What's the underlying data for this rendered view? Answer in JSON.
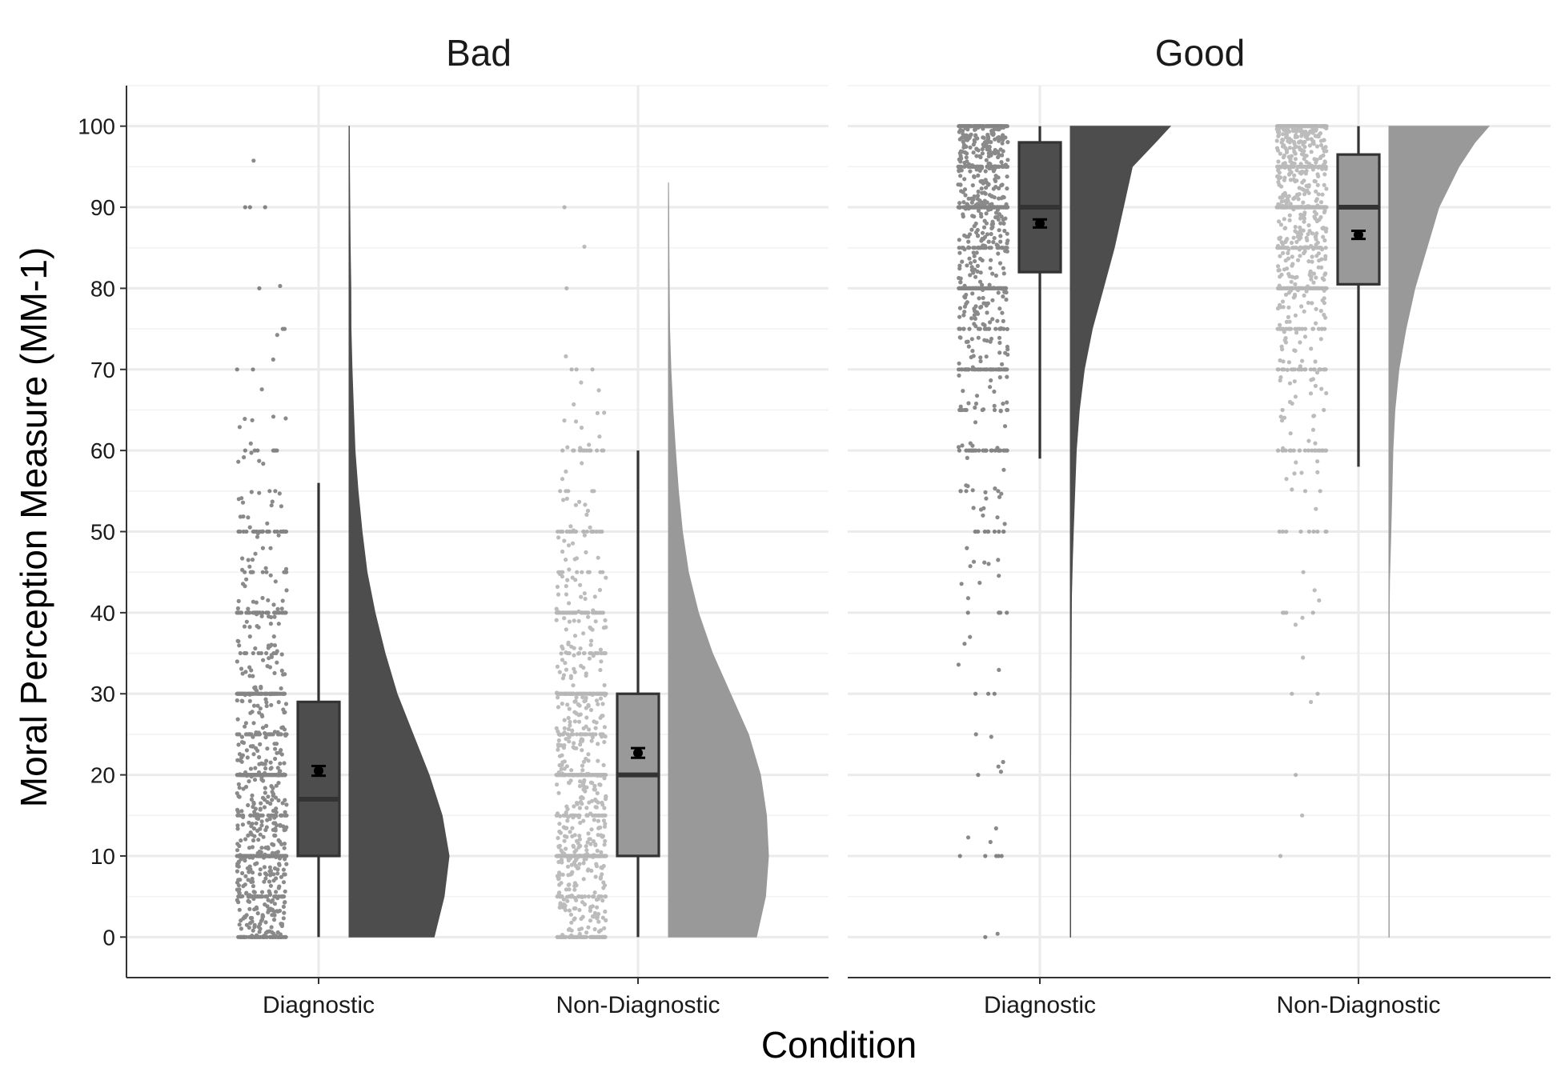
{
  "chart_data": {
    "type": "raincloud",
    "xlabel": "Condition",
    "ylabel": "Moral Perception Measure (MM-1)",
    "ylim": [
      -5,
      105
    ],
    "yticks": [
      0,
      10,
      20,
      30,
      40,
      50,
      60,
      70,
      80,
      90,
      100
    ],
    "grid": true,
    "categories": [
      "Diagnostic",
      "Non-Diagnostic"
    ],
    "colors": {
      "Diagnostic": "#4d4d4d",
      "Non-Diagnostic": "#999999"
    },
    "facets": [
      {
        "title": "Bad",
        "groups": [
          {
            "category": "Diagnostic",
            "box": {
              "q1": 10,
              "median": 17,
              "q3": 29,
              "whisker_low": 0,
              "whisker_high": 56
            },
            "mean": 20.5,
            "mean_ci": [
              19.9,
              21.1
            ],
            "density": [
              [
                0,
                0.85
              ],
              [
                5,
                0.95
              ],
              [
                10,
                1.0
              ],
              [
                15,
                0.93
              ],
              [
                20,
                0.8
              ],
              [
                25,
                0.64
              ],
              [
                30,
                0.48
              ],
              [
                35,
                0.36
              ],
              [
                40,
                0.26
              ],
              [
                45,
                0.18
              ],
              [
                50,
                0.13
              ],
              [
                55,
                0.09
              ],
              [
                60,
                0.06
              ],
              [
                65,
                0.045
              ],
              [
                70,
                0.03
              ],
              [
                75,
                0.02
              ],
              [
                80,
                0.018
              ],
              [
                85,
                0.012
              ],
              [
                90,
                0.008
              ],
              [
                95,
                0.005
              ],
              [
                100,
                0.003
              ]
            ]
          },
          {
            "category": "Non-Diagnostic",
            "box": {
              "q1": 10,
              "median": 20,
              "q3": 30,
              "whisker_low": 0,
              "whisker_high": 60
            },
            "mean": 22.7,
            "mean_ci": [
              22.1,
              23.3
            ],
            "density": [
              [
                0,
                0.88
              ],
              [
                5,
                0.97
              ],
              [
                10,
                1.0
              ],
              [
                15,
                0.98
              ],
              [
                20,
                0.92
              ],
              [
                25,
                0.8
              ],
              [
                30,
                0.62
              ],
              [
                35,
                0.44
              ],
              [
                40,
                0.3
              ],
              [
                45,
                0.2
              ],
              [
                50,
                0.14
              ],
              [
                55,
                0.1
              ],
              [
                60,
                0.07
              ],
              [
                65,
                0.045
              ],
              [
                70,
                0.025
              ],
              [
                75,
                0.012
              ],
              [
                80,
                0.008
              ],
              [
                85,
                0.005
              ],
              [
                90,
                0.003
              ],
              [
                93,
                0.001
              ]
            ]
          }
        ]
      },
      {
        "title": "Good",
        "groups": [
          {
            "category": "Diagnostic",
            "box": {
              "q1": 82,
              "median": 90,
              "q3": 98,
              "whisker_low": 59,
              "whisker_high": 100
            },
            "mean": 88,
            "mean_ci": [
              87.5,
              88.5
            ],
            "density": [
              [
                0,
                0.004
              ],
              [
                18,
                0.004
              ],
              [
                20,
                0.003
              ],
              [
                42,
                0.012
              ],
              [
                46,
                0.02
              ],
              [
                50,
                0.03
              ],
              [
                55,
                0.045
              ],
              [
                60,
                0.06
              ],
              [
                65,
                0.09
              ],
              [
                70,
                0.14
              ],
              [
                75,
                0.22
              ],
              [
                80,
                0.33
              ],
              [
                85,
                0.44
              ],
              [
                90,
                0.53
              ],
              [
                95,
                0.62
              ],
              [
                98,
                0.85
              ],
              [
                100,
                1.0
              ]
            ]
          },
          {
            "category": "Non-Diagnostic",
            "box": {
              "q1": 80.5,
              "median": 90,
              "q3": 96.5,
              "whisker_low": 58,
              "whisker_high": 100
            },
            "mean": 86.6,
            "mean_ci": [
              86.1,
              87.1
            ],
            "density": [
              [
                0,
                0.003
              ],
              [
                40,
                0.003
              ],
              [
                44,
                0.006
              ],
              [
                50,
                0.02
              ],
              [
                55,
                0.03
              ],
              [
                60,
                0.04
              ],
              [
                65,
                0.06
              ],
              [
                70,
                0.1
              ],
              [
                75,
                0.17
              ],
              [
                80,
                0.26
              ],
              [
                85,
                0.38
              ],
              [
                90,
                0.5
              ],
              [
                95,
                0.7
              ],
              [
                98,
                0.86
              ],
              [
                100,
                1.0
              ]
            ]
          }
        ]
      }
    ]
  }
}
